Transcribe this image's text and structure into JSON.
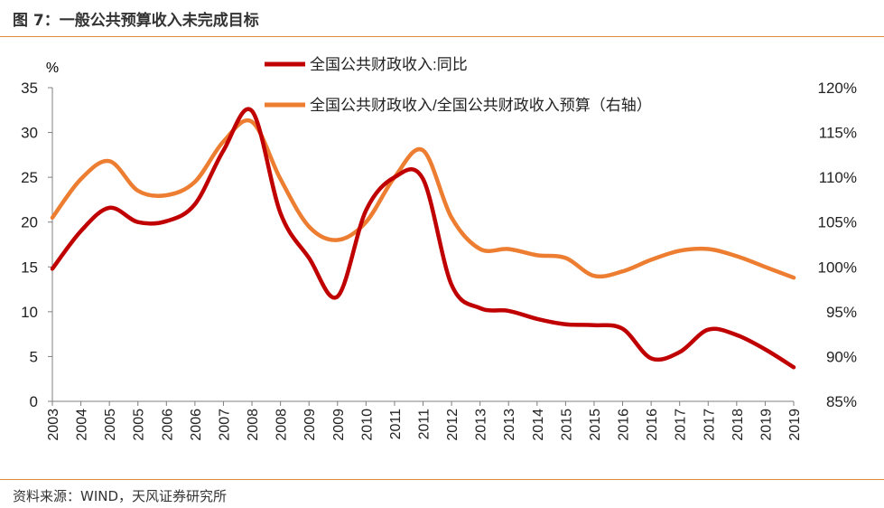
{
  "figure": {
    "title": "图 7：一般公共预算收入未完成目标",
    "source": "资料来源：WIND，天风证券研究所",
    "accent_color": "#e08a3c"
  },
  "chart_data": {
    "type": "line",
    "left_unit": "%",
    "x": [
      "2003",
      "2004",
      "2005",
      "2005",
      "2006",
      "2006",
      "2007",
      "2008",
      "2008",
      "2009",
      "2009",
      "2010",
      "2011",
      "2011",
      "2012",
      "2013",
      "2013",
      "2014",
      "2015",
      "2015",
      "2016",
      "2016",
      "2017",
      "2017",
      "2018",
      "2019",
      "2019"
    ],
    "y_left": {
      "range": [
        0,
        35
      ],
      "ticks": [
        0,
        5,
        10,
        15,
        20,
        25,
        30,
        35
      ]
    },
    "y_right": {
      "range": [
        85,
        120
      ],
      "ticks": [
        "85%",
        "90%",
        "95%",
        "100%",
        "105%",
        "110%",
        "115%",
        "120%"
      ]
    },
    "grid": false,
    "legend_position": "top",
    "series": [
      {
        "name": "全国公共财政收入:同比",
        "axis": "left",
        "color": "#c00000",
        "values": [
          14.8,
          19.0,
          21.6,
          20.0,
          20.1,
          22.0,
          28.0,
          32.4,
          21.0,
          16.0,
          11.7,
          21.3,
          25.0,
          24.8,
          13.0,
          10.4,
          10.1,
          9.2,
          8.6,
          8.5,
          8.1,
          4.8,
          5.5,
          8.0,
          7.4,
          5.8,
          3.8
        ]
      },
      {
        "name": "全国公共财政收入/全国公共财政收入预算（右轴）",
        "axis": "right",
        "color": "#ed7d31",
        "values": [
          105.5,
          109.8,
          111.8,
          108.5,
          108.0,
          109.5,
          114.0,
          116.2,
          109.8,
          104.5,
          103.0,
          105.0,
          110.0,
          113.0,
          105.5,
          102.0,
          102.0,
          101.3,
          101.0,
          99.0,
          99.5,
          100.8,
          101.8,
          102.0,
          101.2,
          100.0,
          98.8
        ]
      }
    ]
  }
}
